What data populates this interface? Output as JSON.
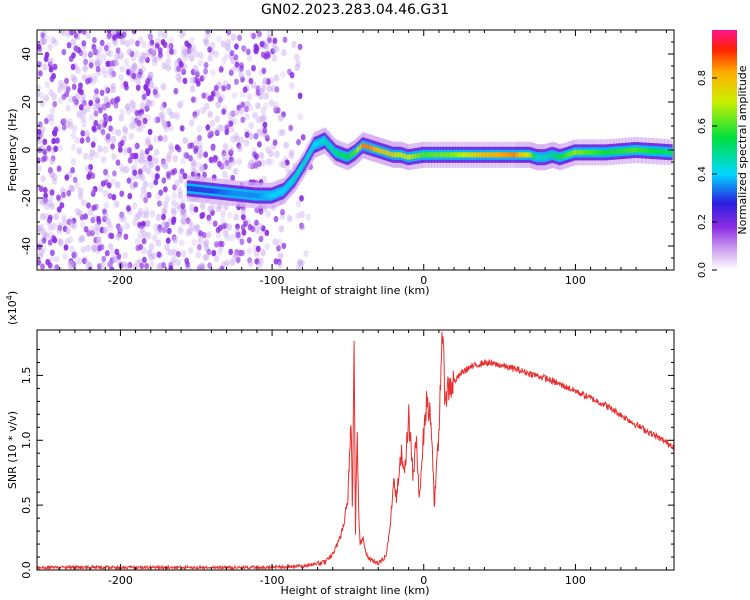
{
  "title": "GN02.2023.283.04.46.G31",
  "colors": {
    "snr_line": "#e83030",
    "scatter_points": "#8a2be2",
    "axis": "#000000"
  },
  "chart_data": [
    {
      "type": "heatmap",
      "title": "GN02.2023.283.04.46.G31",
      "xlabel": "Height of straight line (km)",
      "ylabel": "Frequency (Hz)",
      "xlim": [
        -255,
        165
      ],
      "ylim": [
        -50,
        50
      ],
      "xticks": [
        -200,
        -100,
        0,
        100
      ],
      "xtick_labels": [
        "-200",
        "-100",
        "0",
        "100"
      ],
      "yticks": [
        -40,
        -20,
        0,
        20,
        40
      ],
      "ytick_labels": [
        "-40",
        "-20",
        "0",
        "20",
        "40"
      ],
      "colorbar": {
        "label": "Normalized spectral amplitude",
        "range": [
          0,
          1
        ],
        "ticks": [
          0.0,
          0.2,
          0.4,
          0.6,
          0.8
        ],
        "tick_labels": [
          "0.0",
          "0.2",
          "0.4",
          "0.6",
          "0.8"
        ],
        "colormap": "rainbow (white-purple-blue-cyan-green-yellow-red-magenta)"
      },
      "noise_region_x": [
        -255,
        -85
      ],
      "signal_ridge": {
        "x": [
          -155,
          -140,
          -125,
          -110,
          -100,
          -92,
          -85,
          -78,
          -72,
          -65,
          -58,
          -50,
          -45,
          -40,
          -35,
          -30,
          -25,
          -20,
          -15,
          -10,
          0,
          20,
          40,
          60,
          70,
          75,
          80,
          85,
          90,
          100,
          120,
          140,
          165
        ],
        "frequency": [
          -16,
          -17,
          -18,
          -19,
          -19,
          -17,
          -12,
          -5,
          2,
          4,
          -1,
          -3,
          -1,
          2,
          1,
          0,
          -1,
          -2,
          -2,
          -3,
          -2,
          -2,
          -2,
          -2,
          -2,
          -3,
          -3,
          -2,
          -3,
          -1,
          -1,
          0,
          -1
        ],
        "amplitude": [
          0.3,
          0.3,
          0.35,
          0.35,
          0.4,
          0.4,
          0.45,
          0.45,
          0.4,
          0.45,
          0.5,
          0.55,
          0.6,
          0.85,
          0.85,
          0.8,
          0.75,
          0.75,
          0.7,
          0.7,
          0.6,
          0.65,
          0.8,
          0.85,
          0.7,
          0.45,
          0.45,
          0.5,
          0.55,
          0.65,
          0.55,
          0.6,
          0.5
        ]
      }
    },
    {
      "type": "line",
      "xlabel": "Height of straight line (km)",
      "ylabel": "SNR (10 * v/v)",
      "y_multiplier": "(x10",
      "y_multiplier_exp": "4",
      "y_multiplier_close": ")",
      "xlim": [
        -255,
        165
      ],
      "ylim": [
        0,
        1.85
      ],
      "xticks": [
        -200,
        -100,
        0,
        100
      ],
      "xtick_labels": [
        "-200",
        "-100",
        "0",
        "100"
      ],
      "yticks": [
        0.0,
        0.5,
        1.0,
        1.5
      ],
      "ytick_labels": [
        "0.0",
        "0.5",
        "1.0",
        "1.5"
      ],
      "series": [
        {
          "x": [
            -255,
            -200,
            -150,
            -100,
            -80,
            -65,
            -60,
            -55,
            -52,
            -50,
            -48,
            -47,
            -46,
            -45,
            -44,
            -43,
            -42,
            -40,
            -38,
            -35,
            -30,
            -25,
            -22,
            -20,
            -18,
            -15,
            -12,
            -10,
            -7,
            -5,
            -3,
            -1,
            0,
            2,
            5,
            7,
            10,
            12,
            14,
            16,
            20,
            25,
            30,
            35,
            40,
            50,
            60,
            80,
            100,
            120,
            140,
            165
          ],
          "y": [
            0.02,
            0.02,
            0.02,
            0.02,
            0.03,
            0.06,
            0.12,
            0.25,
            0.4,
            0.55,
            1.2,
            0.4,
            1.82,
            0.3,
            1.1,
            0.5,
            0.2,
            0.25,
            0.12,
            0.08,
            0.05,
            0.1,
            0.35,
            0.7,
            0.55,
            0.9,
            0.8,
            1.2,
            0.7,
            1.0,
            0.55,
            0.9,
            1.05,
            1.3,
            1.15,
            0.5,
            1.05,
            1.85,
            1.35,
            1.4,
            1.45,
            1.52,
            1.56,
            1.58,
            1.6,
            1.58,
            1.55,
            1.48,
            1.38,
            1.27,
            1.12,
            0.95
          ]
        }
      ]
    }
  ]
}
